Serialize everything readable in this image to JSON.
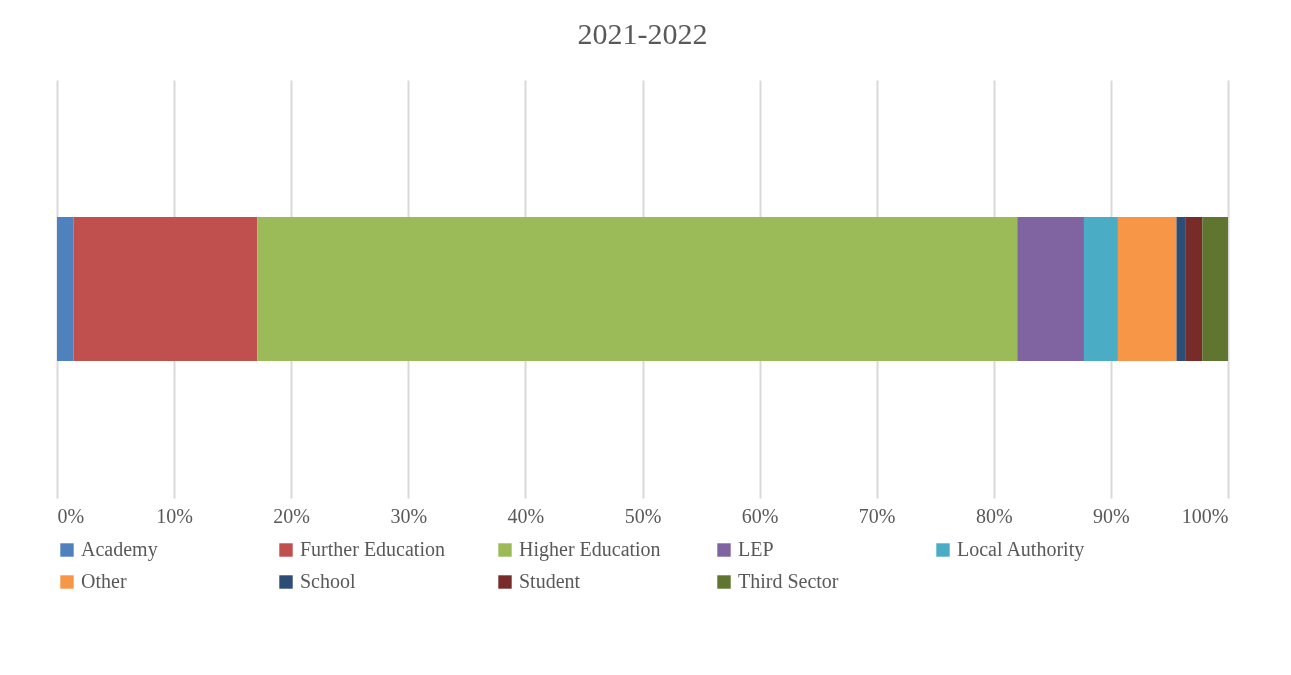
{
  "chart_data": {
    "type": "bar",
    "title": "2021-2022",
    "orientation": "horizontal",
    "stacked": true,
    "categories": [
      null
    ],
    "series": [
      {
        "name": "Academy",
        "color": "#4f81bd",
        "values": [
          1.4
        ]
      },
      {
        "name": "Further Education",
        "color": "#c0504d",
        "values": [
          15.7
        ]
      },
      {
        "name": "Higher Education",
        "color": "#9bbb59",
        "values": [
          64.9
        ]
      },
      {
        "name": "LEP",
        "color": "#8064a2",
        "values": [
          5.7
        ]
      },
      {
        "name": "Local Authority",
        "color": "#4bacc6",
        "values": [
          2.9
        ]
      },
      {
        "name": "Other",
        "color": "#f79646",
        "values": [
          5.0
        ]
      },
      {
        "name": "School",
        "color": "#2c4d75",
        "values": [
          0.8
        ]
      },
      {
        "name": "Student",
        "color": "#772c2a",
        "values": [
          1.4
        ]
      },
      {
        "name": "Third Sector",
        "color": "#5f7530",
        "values": [
          2.2
        ]
      }
    ],
    "xlim": [
      0,
      100
    ],
    "xticks": [
      {
        "value": 0,
        "label": "0%"
      },
      {
        "value": 10,
        "label": "10%"
      },
      {
        "value": 20,
        "label": "20%"
      },
      {
        "value": 30,
        "label": "30%"
      },
      {
        "value": 40,
        "label": "40%"
      },
      {
        "value": 50,
        "label": "50%"
      },
      {
        "value": 60,
        "label": "60%"
      },
      {
        "value": 70,
        "label": "70%"
      },
      {
        "value": 80,
        "label": "80%"
      },
      {
        "value": 90,
        "label": "90%"
      },
      {
        "value": 100,
        "label": "100%"
      }
    ],
    "grid": "x",
    "legend": "bottom"
  }
}
